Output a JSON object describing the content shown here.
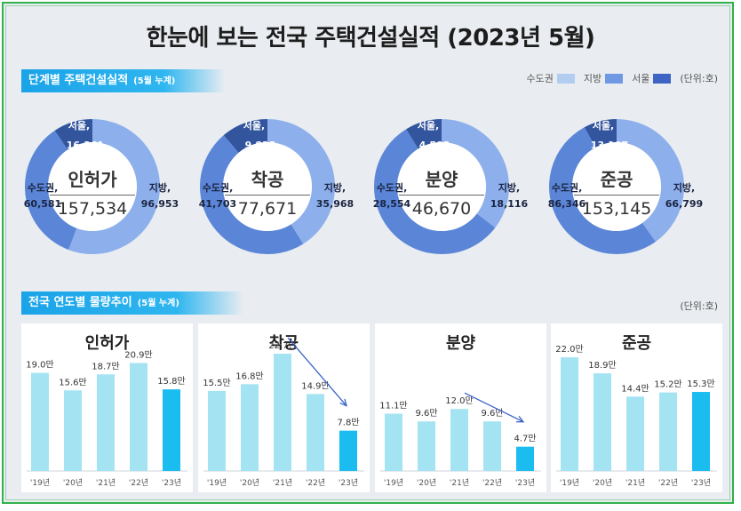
{
  "title": "한눈에 보는 전국 주택건설실적 (2023년 5월)",
  "section1": {
    "label": "단계별 주택건설실적",
    "sub": "(5월 누계)"
  },
  "section2": {
    "label": "전국 연도별 물량추이",
    "sub": "(5월 누계)"
  },
  "legend": [
    {
      "name": "수도권",
      "color": "#b3cdf0"
    },
    {
      "name": "지방",
      "color": "#6f9ae3"
    },
    {
      "name": "서울",
      "color": "#3d63c4"
    }
  ],
  "unit": "(단위:호)",
  "colors": {
    "capital": "#5b86d8",
    "local": "#8db0ec",
    "seoul": "#33559e",
    "bar": "#a4e4f2",
    "bar_current": "#1bbcf0",
    "arrow": "#3a63c9"
  },
  "donuts": [
    {
      "name": "인허가",
      "total": "157,534",
      "seoul": 16361,
      "capital": 60581,
      "local": 96953,
      "seoul_label": "서울,",
      "seoul_value": "16,361",
      "capital_label": "수도권,",
      "capital_value": "60,581",
      "local_label": "지방,",
      "local_value": "96,953"
    },
    {
      "name": "착공",
      "total": "77,671",
      "seoul": 9823,
      "capital": 41703,
      "local": 35968,
      "seoul_label": "서울,",
      "seoul_value": "9,823",
      "capital_label": "수도권,",
      "capital_value": "41,703",
      "local_label": "지방,",
      "local_value": "35,968"
    },
    {
      "name": "분양",
      "total": "46,670",
      "seoul": 4502,
      "capital": 28554,
      "local": 18116,
      "seoul_label": "서울,",
      "seoul_value": "4,502",
      "capital_label": "수도권,",
      "capital_value": "28,554",
      "local_label": "지방,",
      "local_value": "18,116"
    },
    {
      "name": "준공",
      "total": "153,145",
      "seoul": 13107,
      "capital": 86346,
      "local": 66799,
      "seoul_label": "서울,",
      "seoul_value": "13,107",
      "capital_label": "수도권,",
      "capital_value": "86,346",
      "local_label": "지방,",
      "local_value": "66,799"
    }
  ],
  "chart_data": [
    {
      "type": "bar",
      "title": "인허가",
      "categories": [
        "'19년",
        "'20년",
        "'21년",
        "'22년",
        "'23년"
      ],
      "values": [
        19.0,
        15.6,
        18.7,
        20.9,
        15.8
      ],
      "labels": [
        "19.0만",
        "15.6만",
        "18.7만",
        "20.9만",
        "15.8만"
      ],
      "arrow": false
    },
    {
      "type": "bar",
      "title": "착공",
      "categories": [
        "'19년",
        "'20년",
        "'21년",
        "'22년",
        "'23년"
      ],
      "values": [
        15.5,
        16.8,
        22.7,
        14.9,
        7.8
      ],
      "labels": [
        "15.5만",
        "16.8만",
        "22.7만",
        "14.9만",
        "7.8만"
      ],
      "arrow": true
    },
    {
      "type": "bar",
      "title": "분양",
      "categories": [
        "'19년",
        "'20년",
        "'21년",
        "'22년",
        "'23년"
      ],
      "values": [
        11.1,
        9.6,
        12.0,
        9.6,
        4.7
      ],
      "labels": [
        "11.1만",
        "9.6만",
        "12.0만",
        "9.6만",
        "4.7만"
      ],
      "arrow": true
    },
    {
      "type": "bar",
      "title": "준공",
      "categories": [
        "'19년",
        "'20년",
        "'21년",
        "'22년",
        "'23년"
      ],
      "values": [
        22.0,
        18.9,
        14.4,
        15.2,
        15.3
      ],
      "labels": [
        "22.0만",
        "18.9만",
        "14.4만",
        "15.2만",
        "15.3만"
      ],
      "arrow": false
    }
  ]
}
